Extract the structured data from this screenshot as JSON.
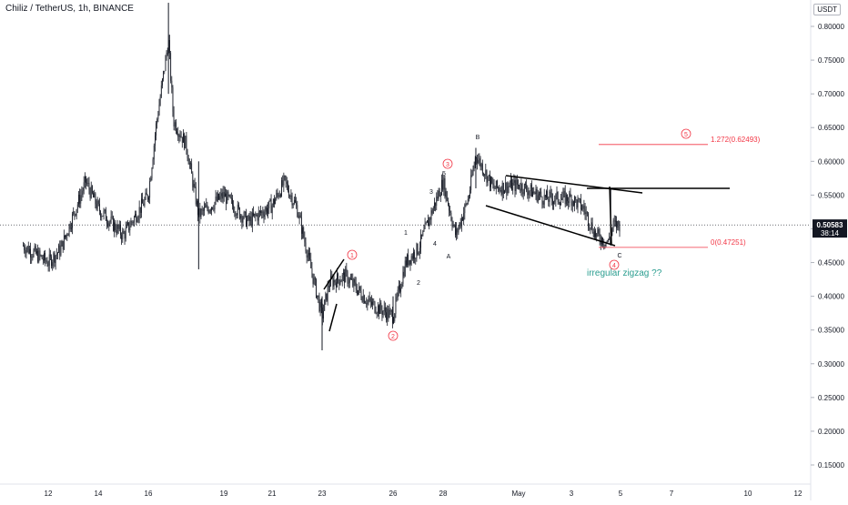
{
  "header": {
    "title": "Chiliz / TetherUS, 1h, BINANCE",
    "unit": "USDT"
  },
  "colors": {
    "candle": "#131722",
    "wave_label": "#f23645",
    "annotation": "#2a9d8f",
    "price_tag_bg": "#131722",
    "price_tag_text": "#ffffff",
    "fib_line": "#f23645",
    "trend_line": "#000000"
  },
  "chart_data": {
    "type": "candlestick",
    "title": "Chiliz / TetherUS, 1h, BINANCE",
    "ylim": [
      0.12,
      0.83
    ],
    "y_ticks": [
      "0.80000",
      "0.75000",
      "0.70000",
      "0.65000",
      "0.60000",
      "0.55000",
      "0.50000",
      "0.45000",
      "0.40000",
      "0.35000",
      "0.30000",
      "0.25000",
      "0.20000",
      "0.15000"
    ],
    "x_ticks": [
      "12",
      "14",
      "16",
      "19",
      "21",
      "23",
      "26",
      "28",
      "May",
      "3",
      "5",
      "7",
      "10",
      "12"
    ],
    "price_series": [
      {
        "x": "11",
        "y": 0.475
      },
      {
        "x": "12",
        "y": 0.45
      },
      {
        "x": "12.5",
        "y": 0.47
      },
      {
        "x": "13",
        "y": 0.52
      },
      {
        "x": "13.5",
        "y": 0.57
      },
      {
        "x": "14",
        "y": 0.53
      },
      {
        "x": "15",
        "y": 0.49
      },
      {
        "x": "16",
        "y": 0.55
      },
      {
        "x": "16.3",
        "y": 0.65
      },
      {
        "x": "16.8",
        "y": 0.78
      },
      {
        "x": "17",
        "y": 0.66
      },
      {
        "x": "17.5",
        "y": 0.625
      },
      {
        "x": "18",
        "y": 0.52
      },
      {
        "x": "19",
        "y": 0.55
      },
      {
        "x": "20",
        "y": 0.51
      },
      {
        "x": "21",
        "y": 0.535
      },
      {
        "x": "21.5",
        "y": 0.57
      },
      {
        "x": "22",
        "y": 0.53
      },
      {
        "x": "23",
        "y": 0.37
      },
      {
        "x": "23.3",
        "y": 0.42
      },
      {
        "x": "24",
        "y": 0.43
      },
      {
        "x": "25",
        "y": 0.39
      },
      {
        "x": "26",
        "y": 0.37
      },
      {
        "x": "26.5",
        "y": 0.45
      },
      {
        "x": "27",
        "y": 0.47
      },
      {
        "x": "27.5",
        "y": 0.52
      },
      {
        "x": "28",
        "y": 0.57
      },
      {
        "x": "28.5",
        "y": 0.49
      },
      {
        "x": "29",
        "y": 0.545
      },
      {
        "x": "29.3",
        "y": 0.61
      },
      {
        "x": "30",
        "y": 0.56
      },
      {
        "x": "May",
        "y": 0.565
      },
      {
        "x": "2",
        "y": 0.545
      },
      {
        "x": "3",
        "y": 0.545
      },
      {
        "x": "3.5",
        "y": 0.53
      },
      {
        "x": "4",
        "y": 0.49
      },
      {
        "x": "4.5",
        "y": 0.48
      },
      {
        "x": "4.7",
        "y": 0.505
      },
      {
        "x": "5",
        "y": 0.506
      }
    ],
    "current_price": "0.50583",
    "countdown": "38:14",
    "wave_labels": [
      "1",
      "2",
      "3",
      "4",
      "5"
    ],
    "subwave_labels": [
      "1",
      "2",
      "3",
      "4",
      "5"
    ],
    "correction_labels": [
      "A",
      "B",
      "C"
    ],
    "fib_levels": [
      {
        "label": "1.272(0.62493)",
        "price": 0.62493
      },
      {
        "label": "0(0.47251)",
        "price": 0.47251
      }
    ],
    "annotation": "irregular zigzag ??"
  }
}
